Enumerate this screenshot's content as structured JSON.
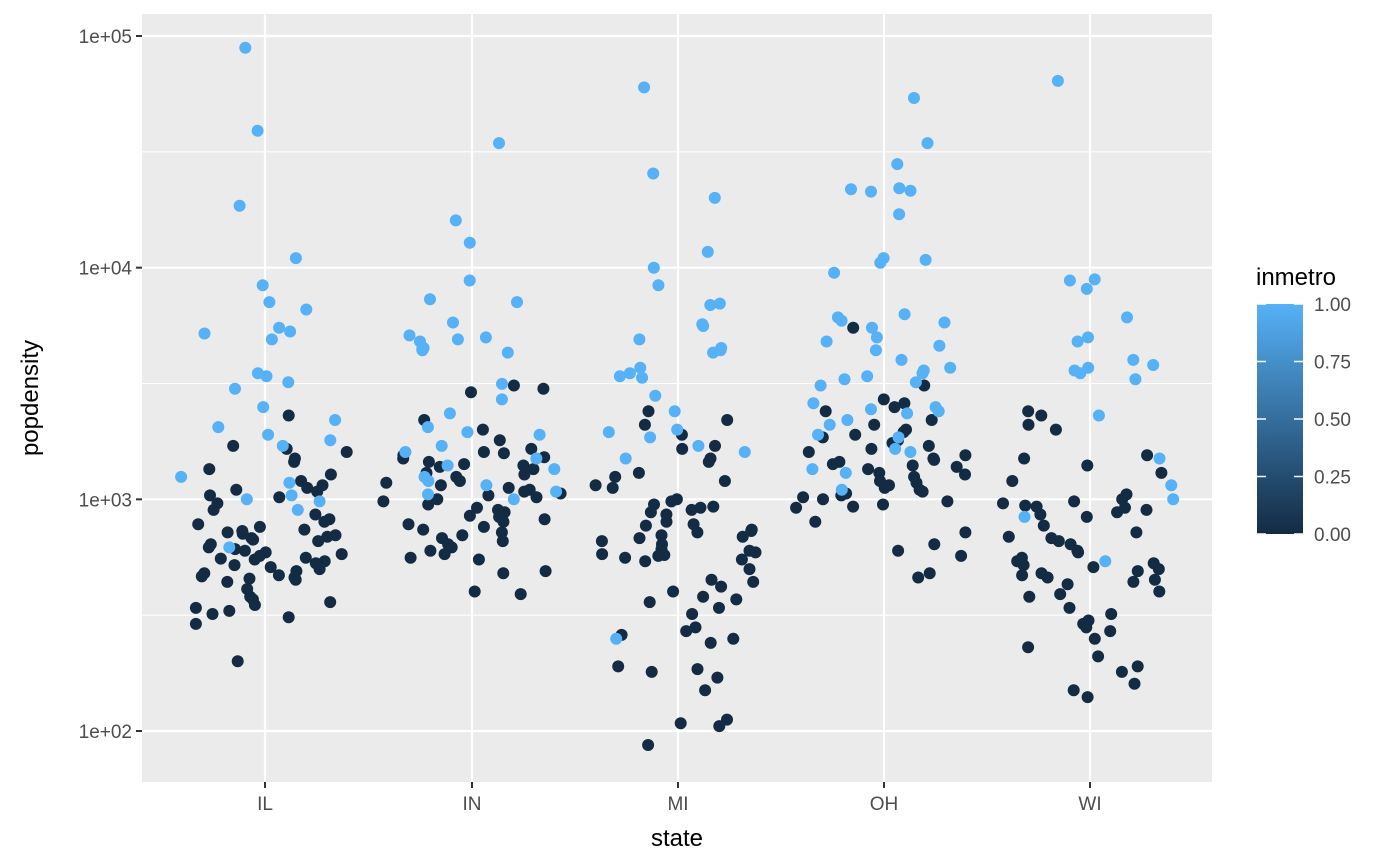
{
  "chart_data": {
    "type": "scatter",
    "subtype": "jittered strip plot",
    "xlabel": "state",
    "ylabel": "popdensity",
    "y_scale": "log10",
    "ylim": [
      60,
      130000
    ],
    "y_ticks": [
      100,
      1000,
      10000,
      100000
    ],
    "y_tick_labels": [
      "1e+02",
      "1e+03",
      "1e+04",
      "1e+05"
    ],
    "categories": [
      "IL",
      "IN",
      "MI",
      "OH",
      "WI"
    ],
    "grid": true,
    "legend": {
      "title": "inmetro",
      "type": "colorbar",
      "placement": "right",
      "labels": [
        "1.00",
        "0.75",
        "0.50",
        "0.25",
        "0.00"
      ],
      "values": [
        1.0,
        0.75,
        0.5,
        0.25,
        0.0
      ],
      "color_low": "#132B43",
      "color_high": "#56B1F7"
    },
    "colors": {
      "panel_background": "#EBEBEB",
      "grid": "#FFFFFF",
      "metro": "#56B1F7",
      "nonmetro": "#132B43"
    },
    "points": {
      "IL": {
        "metro": [
          89000,
          39000,
          18500,
          11000,
          8400,
          7100,
          6600,
          5500,
          5300,
          5200,
          4900,
          3500,
          3400,
          3200,
          3000,
          2500,
          2200,
          2050,
          1900,
          1800,
          1700,
          1250,
          1180,
          1040,
          1000,
          980,
          900,
          620
        ],
        "nonmetro": [
          2300,
          1700,
          1650,
          1600,
          1500,
          1450,
          1350,
          1280,
          1200,
          1150,
          1120,
          1100,
          1080,
          1040,
          1020,
          960,
          900,
          860,
          820,
          800,
          780,
          760,
          740,
          730,
          720,
          710,
          700,
          690,
          680,
          670,
          660,
          640,
          620,
          610,
          600,
          590,
          580,
          570,
          560,
          555,
          550,
          540,
          530,
          520,
          510,
          500,
          490,
          480,
          470,
          465,
          460,
          455,
          450,
          440,
          410,
          380,
          370,
          360,
          350,
          340,
          330,
          320,
          310,
          290,
          200
        ]
      },
      "IN": {
        "metro": [
          34500,
          16000,
          12800,
          8800,
          7300,
          7100,
          5800,
          5100,
          5000,
          4900,
          4800,
          4500,
          4450,
          4400,
          4300,
          3150,
          2700,
          2350,
          2050,
          1950,
          1900,
          1700,
          1600,
          1500,
          1400,
          1350,
          1250,
          1200,
          1150,
          1080,
          1050,
          1000
        ],
        "nonmetro": [
          3100,
          3000,
          2900,
          2200,
          2000,
          1800,
          1650,
          1600,
          1580,
          1550,
          1520,
          1500,
          1450,
          1420,
          1400,
          1380,
          1350,
          1300,
          1280,
          1250,
          1200,
          1180,
          1150,
          1120,
          1100,
          1080,
          1060,
          1040,
          1020,
          1000,
          980,
          950,
          920,
          900,
          880,
          860,
          850,
          840,
          820,
          800,
          780,
          760,
          740,
          720,
          700,
          680,
          660,
          640,
          620,
          600,
          580,
          560,
          550,
          490,
          480,
          400,
          390
        ]
      },
      "MI": {
        "metro": [
          60000,
          25500,
          20000,
          11700,
          10000,
          8400,
          7000,
          6900,
          5700,
          5600,
          4900,
          4500,
          4400,
          4300,
          3700,
          3500,
          3400,
          3350,
          2800,
          2400,
          2000,
          1950,
          1850,
          1700,
          1600,
          1500,
          250
        ],
        "nonmetro": [
          2400,
          2200,
          2100,
          1900,
          1700,
          1650,
          1500,
          1450,
          1300,
          1250,
          1200,
          1150,
          1120,
          1000,
          980,
          950,
          930,
          920,
          900,
          880,
          860,
          800,
          780,
          770,
          740,
          730,
          720,
          700,
          690,
          680,
          660,
          640,
          610,
          600,
          590,
          580,
          575,
          570,
          560,
          550,
          540,
          500,
          450,
          440,
          420,
          400,
          380,
          370,
          360,
          340,
          320,
          280,
          270,
          260,
          250,
          240,
          190,
          185,
          180,
          170,
          150,
          112,
          108,
          105,
          87
        ]
      },
      "OH": {
        "metro": [
          54000,
          34500,
          28000,
          22000,
          21800,
          21500,
          21300,
          17000,
          11000,
          10800,
          10500,
          9500,
          6300,
          6100,
          5900,
          5800,
          5500,
          5000,
          4800,
          4600,
          4400,
          4000,
          3700,
          3600,
          3500,
          3400,
          3300,
          3200,
          3100,
          2600,
          2500,
          2450,
          2400,
          2350,
          2200,
          2100,
          1900,
          1850,
          1650,
          1600,
          1350,
          1300,
          1100
        ],
        "nonmetro": [
          5500,
          3100,
          2700,
          2600,
          2500,
          2400,
          2200,
          2100,
          2000,
          1950,
          1900,
          1850,
          1800,
          1750,
          1700,
          1650,
          1600,
          1550,
          1500,
          1480,
          1450,
          1420,
          1400,
          1380,
          1350,
          1300,
          1280,
          1250,
          1200,
          1180,
          1150,
          1120,
          1100,
          1080,
          1060,
          1040,
          1020,
          1000,
          980,
          950,
          930,
          920,
          800,
          720,
          640,
          600,
          570,
          480,
          460
        ]
      },
      "WI": {
        "metro": [
          64000,
          8900,
          8800,
          8100,
          6100,
          5000,
          4800,
          4000,
          3800,
          3700,
          3600,
          3500,
          3300,
          2300,
          1500,
          1150,
          1000,
          840,
          540
        ],
        "nonmetro": [
          2400,
          2300,
          2100,
          2000,
          1550,
          1500,
          1400,
          1300,
          1200,
          1050,
          1000,
          980,
          960,
          940,
          930,
          920,
          900,
          880,
          860,
          840,
          770,
          720,
          690,
          680,
          660,
          640,
          600,
          590,
          560,
          540,
          530,
          520,
          510,
          500,
          490,
          480,
          470,
          460,
          450,
          440,
          430,
          400,
          390,
          380,
          340,
          320,
          300,
          290,
          280,
          270,
          250,
          230,
          210,
          190,
          180,
          160,
          150,
          140
        ]
      }
    }
  }
}
